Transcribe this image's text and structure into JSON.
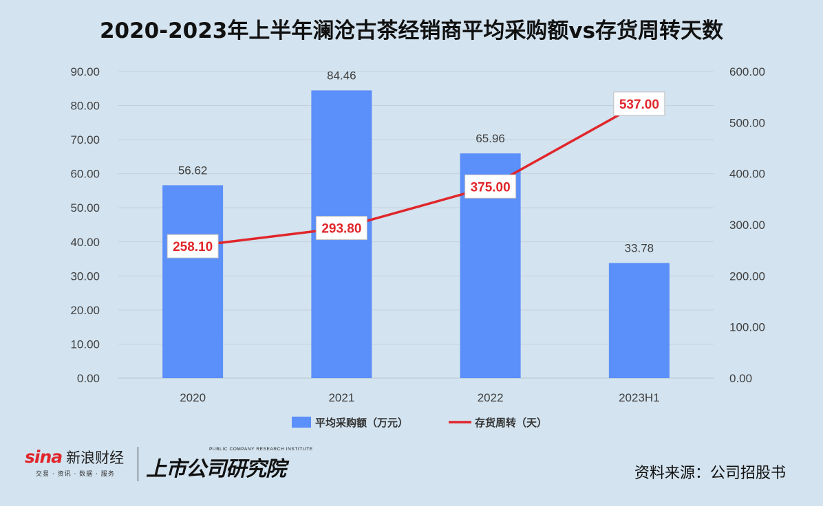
{
  "title": "2020-2023年上半年澜沧古茶经销商平均采购额vs存货周转天数",
  "chart_data": {
    "type": "bar+line",
    "categories": [
      "2020",
      "2021",
      "2022",
      "2023H1"
    ],
    "series": [
      {
        "name": "平均采购额（万元）",
        "type": "bar",
        "axis": "left",
        "color": "#5b8ff9",
        "values": [
          56.62,
          84.46,
          65.96,
          33.78
        ],
        "labels": [
          "56.62",
          "84.46",
          "65.96",
          "33.78"
        ]
      },
      {
        "name": "存货周转（天）",
        "type": "line",
        "axis": "right",
        "color": "#e0262b",
        "values": [
          258.1,
          293.8,
          375.0,
          537.0
        ],
        "labels": [
          "258.10",
          "293.80",
          "375.00",
          "537.00"
        ]
      }
    ],
    "y_left": {
      "ylim": [
        0,
        90
      ],
      "ticks": [
        "0.00",
        "10.00",
        "20.00",
        "30.00",
        "40.00",
        "50.00",
        "60.00",
        "70.00",
        "80.00",
        "90.00"
      ]
    },
    "y_right": {
      "ylim": [
        0,
        600
      ],
      "ticks": [
        "0.00",
        "100.00",
        "200.00",
        "300.00",
        "400.00",
        "500.00",
        "600.00"
      ]
    },
    "grid": true,
    "legend": "bottom"
  },
  "footer": {
    "sina_logo": "sina",
    "sina_name": "新浪财经",
    "sina_tagline": "交易 · 资讯 · 数据 · 服务",
    "institute_en": "PUBLIC COMPANY RESEARCH INSTITUTE",
    "institute_zh": "上市公司研究院",
    "source": "资料来源：公司招股书"
  },
  "colors": {
    "background": "#d3e3ef",
    "bar": "#5b8ff9",
    "line": "#e0262b"
  }
}
